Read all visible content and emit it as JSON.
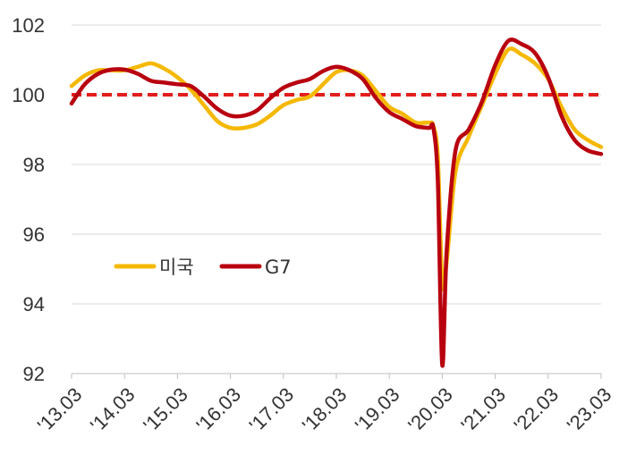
{
  "chart_data": {
    "type": "line",
    "title": "",
    "xlabel": "",
    "ylabel": "",
    "ylim": [
      92,
      102
    ],
    "yticks": [
      92,
      94,
      96,
      98,
      100,
      102
    ],
    "xticks": [
      "'13.03",
      "'14.03",
      "'15.03",
      "'16.03",
      "'17.03",
      "'18.03",
      "'19.03",
      "'20.03",
      "'21.03",
      "'22.03",
      "'23.03"
    ],
    "grid": "horizontal",
    "legend": "middle-left",
    "reference_line": {
      "value": 100,
      "color": "#e31d1d",
      "style": "dashed"
    },
    "series": [
      {
        "name": "미국",
        "color": "#f5b800",
        "points": [
          [
            "'13.03",
            100.25
          ],
          [
            "'13.06",
            100.55
          ],
          [
            "'13.09",
            100.7
          ],
          [
            "'13.12",
            100.7
          ],
          [
            "'14.03",
            100.7
          ],
          [
            "'14.06",
            100.8
          ],
          [
            "'14.09",
            100.9
          ],
          [
            "'14.12",
            100.75
          ],
          [
            "'15.03",
            100.5
          ],
          [
            "'15.06",
            100.15
          ],
          [
            "'15.09",
            99.7
          ],
          [
            "'15.12",
            99.25
          ],
          [
            "'16.03",
            99.05
          ],
          [
            "'16.06",
            99.05
          ],
          [
            "'16.09",
            99.15
          ],
          [
            "'16.12",
            99.4
          ],
          [
            "'17.03",
            99.7
          ],
          [
            "'17.06",
            99.85
          ],
          [
            "'17.09",
            99.95
          ],
          [
            "'17.12",
            100.3
          ],
          [
            "'18.03",
            100.65
          ],
          [
            "'18.06",
            100.7
          ],
          [
            "'18.09",
            100.55
          ],
          [
            "'18.12",
            100.1
          ],
          [
            "'19.03",
            99.65
          ],
          [
            "'19.06",
            99.45
          ],
          [
            "'19.09",
            99.2
          ],
          [
            "'19.12",
            99.2
          ],
          [
            "'20.01",
            99.1
          ],
          [
            "'20.02",
            98.2
          ],
          [
            "'20.03",
            94.6
          ],
          [
            "'20.04",
            95.2
          ],
          [
            "'20.06",
            97.8
          ],
          [
            "'20.09",
            98.8
          ],
          [
            "'20.12",
            99.7
          ],
          [
            "'21.03",
            100.6
          ],
          [
            "'21.06",
            101.3
          ],
          [
            "'21.09",
            101.15
          ],
          [
            "'21.12",
            100.9
          ],
          [
            "'22.03",
            100.45
          ],
          [
            "'22.06",
            99.65
          ],
          [
            "'22.09",
            99.0
          ],
          [
            "'22.12",
            98.7
          ],
          [
            "'23.03",
            98.5
          ]
        ]
      },
      {
        "name": "G7",
        "color": "#b8000f",
        "points": [
          [
            "'13.03",
            99.75
          ],
          [
            "'13.06",
            100.3
          ],
          [
            "'13.09",
            100.6
          ],
          [
            "'13.12",
            100.72
          ],
          [
            "'14.03",
            100.72
          ],
          [
            "'14.06",
            100.6
          ],
          [
            "'14.09",
            100.4
          ],
          [
            "'14.12",
            100.35
          ],
          [
            "'15.03",
            100.3
          ],
          [
            "'15.06",
            100.25
          ],
          [
            "'15.09",
            99.95
          ],
          [
            "'15.12",
            99.6
          ],
          [
            "'16.03",
            99.4
          ],
          [
            "'16.06",
            99.4
          ],
          [
            "'16.09",
            99.55
          ],
          [
            "'16.12",
            99.9
          ],
          [
            "'17.03",
            100.2
          ],
          [
            "'17.06",
            100.35
          ],
          [
            "'17.09",
            100.45
          ],
          [
            "'17.12",
            100.68
          ],
          [
            "'18.03",
            100.8
          ],
          [
            "'18.06",
            100.7
          ],
          [
            "'18.09",
            100.45
          ],
          [
            "'18.12",
            99.9
          ],
          [
            "'19.03",
            99.5
          ],
          [
            "'19.06",
            99.3
          ],
          [
            "'19.09",
            99.1
          ],
          [
            "'19.12",
            99.05
          ],
          [
            "'20.01",
            99.05
          ],
          [
            "'20.02",
            97.5
          ],
          [
            "'20.03",
            92.25
          ],
          [
            "'20.04",
            95.5
          ],
          [
            "'20.06",
            98.4
          ],
          [
            "'20.09",
            99.0
          ],
          [
            "'20.12",
            99.8
          ],
          [
            "'21.03",
            100.85
          ],
          [
            "'21.06",
            101.55
          ],
          [
            "'21.09",
            101.45
          ],
          [
            "'21.12",
            101.2
          ],
          [
            "'22.03",
            100.5
          ],
          [
            "'22.06",
            99.4
          ],
          [
            "'22.09",
            98.7
          ],
          [
            "'22.12",
            98.4
          ],
          [
            "'23.03",
            98.3
          ]
        ]
      }
    ]
  }
}
